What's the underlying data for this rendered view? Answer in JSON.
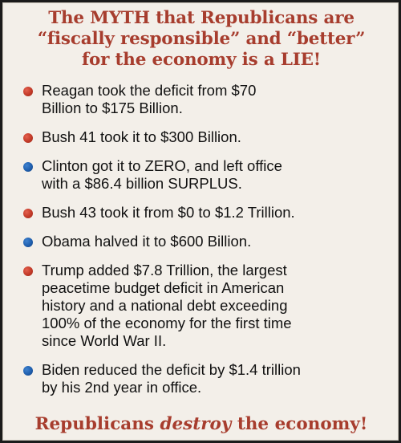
{
  "title": {
    "lines": [
      "The MYTH that Republicans are",
      "“fiscally responsible” and “better”",
      "for the economy is a LIE!"
    ]
  },
  "colors": {
    "title_red": "#a73d2e",
    "bullet_red": "#c23a28",
    "bullet_blue": "#1f5fae",
    "background": "#f3efe9"
  },
  "items": [
    {
      "bullet": "red",
      "lines": [
        "Reagan took the deficit from $70",
        "Billion to $175 Billion."
      ]
    },
    {
      "bullet": "red",
      "lines": [
        "Bush 41 took it to $300 Billion."
      ]
    },
    {
      "bullet": "blue",
      "lines": [
        "Clinton got it to ZERO, and left office",
        "with a $86.4 billion SURPLUS."
      ]
    },
    {
      "bullet": "red",
      "lines": [
        "Bush 43 took it from $0 to $1.2 Trillion."
      ]
    },
    {
      "bullet": "blue",
      "lines": [
        "Obama halved it to $600 Billion."
      ]
    },
    {
      "bullet": "red",
      "lines": [
        "Trump added $7.8 Trillion, the largest",
        "peacetime budget deficit in American",
        "history and a national debt exceeding",
        "100% of the economy for the first time",
        "since World War II."
      ]
    },
    {
      "bullet": "blue",
      "lines": [
        "Biden reduced the deficit by $1.4 trillion",
        "by his 2nd year in office."
      ]
    }
  ],
  "footer": {
    "pre": "Republicans ",
    "emphasis": "destroy",
    "post": " the economy!"
  }
}
